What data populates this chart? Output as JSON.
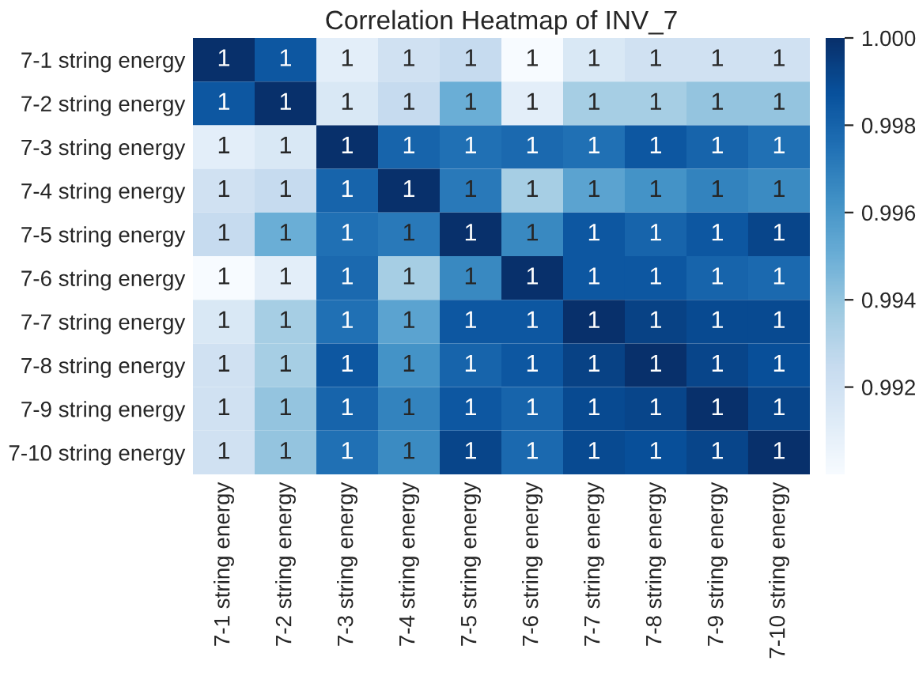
{
  "chart_data": {
    "type": "heatmap",
    "title": "Correlation Heatmap of INV_7",
    "categories": [
      "7-1 string energy",
      "7-2 string energy",
      "7-3 string energy",
      "7-4 string energy",
      "7-5 string energy",
      "7-6 string energy",
      "7-7 string energy",
      "7-8 string energy",
      "7-9 string energy",
      "7-10 string energy"
    ],
    "y_categories": [
      "7-1 string energy",
      "7-2 string energy",
      "7-3 string energy",
      "7-4 string energy",
      "7-5 string energy",
      "7-6 string energy",
      "7-7 string energy",
      "7-8 string energy",
      "7-9 string energy",
      "7-10 string energy"
    ],
    "cells": [
      [
        1.0,
        0.9985,
        0.991,
        0.992,
        0.9925,
        0.99,
        0.9915,
        0.992,
        0.992,
        0.992
      ],
      [
        0.9985,
        1.0,
        0.9915,
        0.9925,
        0.995,
        0.991,
        0.9935,
        0.9935,
        0.994,
        0.994
      ],
      [
        0.991,
        0.9915,
        1.0,
        0.998,
        0.9975,
        0.9978,
        0.9975,
        0.9985,
        0.998,
        0.9975
      ],
      [
        0.992,
        0.9925,
        0.998,
        1.0,
        0.9972,
        0.9935,
        0.9955,
        0.9962,
        0.9968,
        0.9965
      ],
      [
        0.9925,
        0.995,
        0.9975,
        0.9972,
        1.0,
        0.9966,
        0.9985,
        0.998,
        0.9985,
        0.9992
      ],
      [
        0.99,
        0.991,
        0.9978,
        0.9935,
        0.9966,
        1.0,
        0.9985,
        0.9985,
        0.998,
        0.9978
      ],
      [
        0.9915,
        0.9935,
        0.9975,
        0.9955,
        0.9985,
        0.9985,
        1.0,
        0.9993,
        0.999,
        0.999
      ],
      [
        0.992,
        0.9935,
        0.9985,
        0.9962,
        0.998,
        0.9985,
        0.9993,
        1.0,
        0.9992,
        0.9988
      ],
      [
        0.992,
        0.994,
        0.998,
        0.9968,
        0.9985,
        0.998,
        0.999,
        0.9992,
        1.0,
        0.9992
      ],
      [
        0.992,
        0.994,
        0.9975,
        0.9965,
        0.9992,
        0.9978,
        0.999,
        0.9988,
        0.9992,
        1.0
      ]
    ],
    "cell_labels": [
      [
        "1",
        "1",
        "1",
        "1",
        "1",
        "1",
        "1",
        "1",
        "1",
        "1"
      ],
      [
        "1",
        "1",
        "1",
        "1",
        "1",
        "1",
        "1",
        "1",
        "1",
        "1"
      ],
      [
        "1",
        "1",
        "1",
        "1",
        "1",
        "1",
        "1",
        "1",
        "1",
        "1"
      ],
      [
        "1",
        "1",
        "1",
        "1",
        "1",
        "1",
        "1",
        "1",
        "1",
        "1"
      ],
      [
        "1",
        "1",
        "1",
        "1",
        "1",
        "1",
        "1",
        "1",
        "1",
        "1"
      ],
      [
        "1",
        "1",
        "1",
        "1",
        "1",
        "1",
        "1",
        "1",
        "1",
        "1"
      ],
      [
        "1",
        "1",
        "1",
        "1",
        "1",
        "1",
        "1",
        "1",
        "1",
        "1"
      ],
      [
        "1",
        "1",
        "1",
        "1",
        "1",
        "1",
        "1",
        "1",
        "1",
        "1"
      ],
      [
        "1",
        "1",
        "1",
        "1",
        "1",
        "1",
        "1",
        "1",
        "1",
        "1"
      ],
      [
        "1",
        "1",
        "1",
        "1",
        "1",
        "1",
        "1",
        "1",
        "1",
        "1"
      ]
    ],
    "clim": [
      0.99,
      1.0
    ],
    "cticks": [
      0.992,
      0.994,
      0.996,
      0.998,
      {
        "value": 1.0,
        "label": "1.000"
      }
    ]
  }
}
